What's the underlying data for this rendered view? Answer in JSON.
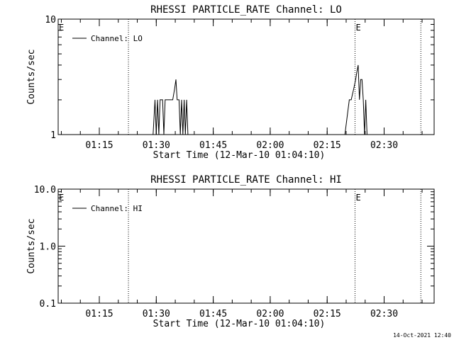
{
  "chart_data": [
    {
      "type": "line",
      "title": "RHESSI PARTICLE_RATE Channel: LO",
      "xlabel": "Start Time (12-Mar-10 01:04:10)",
      "ylabel": "Counts/sec",
      "y_scale": "log",
      "ylim": [
        1,
        10
      ],
      "y_ticks": [
        1,
        10
      ],
      "y_tick_labels": [
        "1",
        "10"
      ],
      "x_tick_labels": [
        "01:15",
        "01:30",
        "01:45",
        "02:00",
        "02:15",
        "02:30"
      ],
      "x_ticks": [
        "01:15",
        "01:30",
        "01:45",
        "02:00",
        "02:15",
        "02:30"
      ],
      "xlim": [
        "01:04:10",
        "02:43:10"
      ],
      "legend": {
        "label": "Channel: LO",
        "position": "top-left"
      },
      "event_markers": [
        {
          "time": "01:04:10",
          "label": "E",
          "line": false
        },
        {
          "time": "01:22:40",
          "label": "",
          "line": true
        },
        {
          "time": "02:22:20",
          "label": "E",
          "line": true
        },
        {
          "time": "02:39:40",
          "label": "",
          "line": true
        }
      ],
      "series": [
        {
          "name": "Channel: LO",
          "points": [
            [
              "01:04:10",
              1
            ],
            [
              "01:29:10",
              1
            ],
            [
              "01:29:40",
              2
            ],
            [
              "01:30:00",
              1
            ],
            [
              "01:30:20",
              2
            ],
            [
              "01:30:40",
              1
            ],
            [
              "01:31:00",
              2
            ],
            [
              "01:31:40",
              2
            ],
            [
              "01:32:00",
              1
            ],
            [
              "01:32:20",
              2
            ],
            [
              "01:34:20",
              2
            ],
            [
              "01:34:50",
              2.5
            ],
            [
              "01:35:10",
              3
            ],
            [
              "01:35:30",
              2
            ],
            [
              "01:36:00",
              2
            ],
            [
              "01:36:20",
              1
            ],
            [
              "01:36:40",
              2
            ],
            [
              "01:37:00",
              1
            ],
            [
              "01:37:20",
              2
            ],
            [
              "01:37:40",
              1
            ],
            [
              "01:38:00",
              2
            ],
            [
              "01:38:20",
              1
            ],
            [
              "02:19:40",
              1
            ],
            [
              "02:20:50",
              2
            ],
            [
              "02:21:20",
              2
            ],
            [
              "02:22:00",
              2.5
            ],
            [
              "02:22:30",
              3
            ],
            [
              "02:22:50",
              3.5
            ],
            [
              "02:23:10",
              4
            ],
            [
              "02:23:30",
              2
            ],
            [
              "02:23:50",
              3
            ],
            [
              "02:24:10",
              3
            ],
            [
              "02:24:30",
              2
            ],
            [
              "02:24:50",
              1
            ],
            [
              "02:25:10",
              2
            ],
            [
              "02:25:30",
              1
            ],
            [
              "02:43:10",
              1
            ]
          ]
        }
      ]
    },
    {
      "type": "line",
      "title": "RHESSI PARTICLE_RATE Channel: HI",
      "xlabel": "Start Time (12-Mar-10 01:04:10)",
      "ylabel": "Counts/sec",
      "y_scale": "log",
      "ylim": [
        0.1,
        10
      ],
      "y_ticks": [
        0.1,
        1,
        10
      ],
      "y_tick_labels": [
        "0.1",
        "1.0",
        "10.0"
      ],
      "x_tick_labels": [
        "01:15",
        "01:30",
        "01:45",
        "02:00",
        "02:15",
        "02:30"
      ],
      "x_ticks": [
        "01:15",
        "01:30",
        "01:45",
        "02:00",
        "02:15",
        "02:30"
      ],
      "xlim": [
        "01:04:10",
        "02:43:10"
      ],
      "legend": {
        "label": "Channel: HI",
        "position": "top-left"
      },
      "event_markers": [
        {
          "time": "01:04:10",
          "label": "E",
          "line": false
        },
        {
          "time": "01:22:40",
          "label": "",
          "line": true
        },
        {
          "time": "02:22:20",
          "label": "E",
          "line": true
        },
        {
          "time": "02:39:40",
          "label": "",
          "line": true
        }
      ],
      "series": [
        {
          "name": "Channel: HI",
          "points": []
        }
      ]
    }
  ],
  "footer": {
    "timestamp": "14-Oct-2021 12:40"
  }
}
